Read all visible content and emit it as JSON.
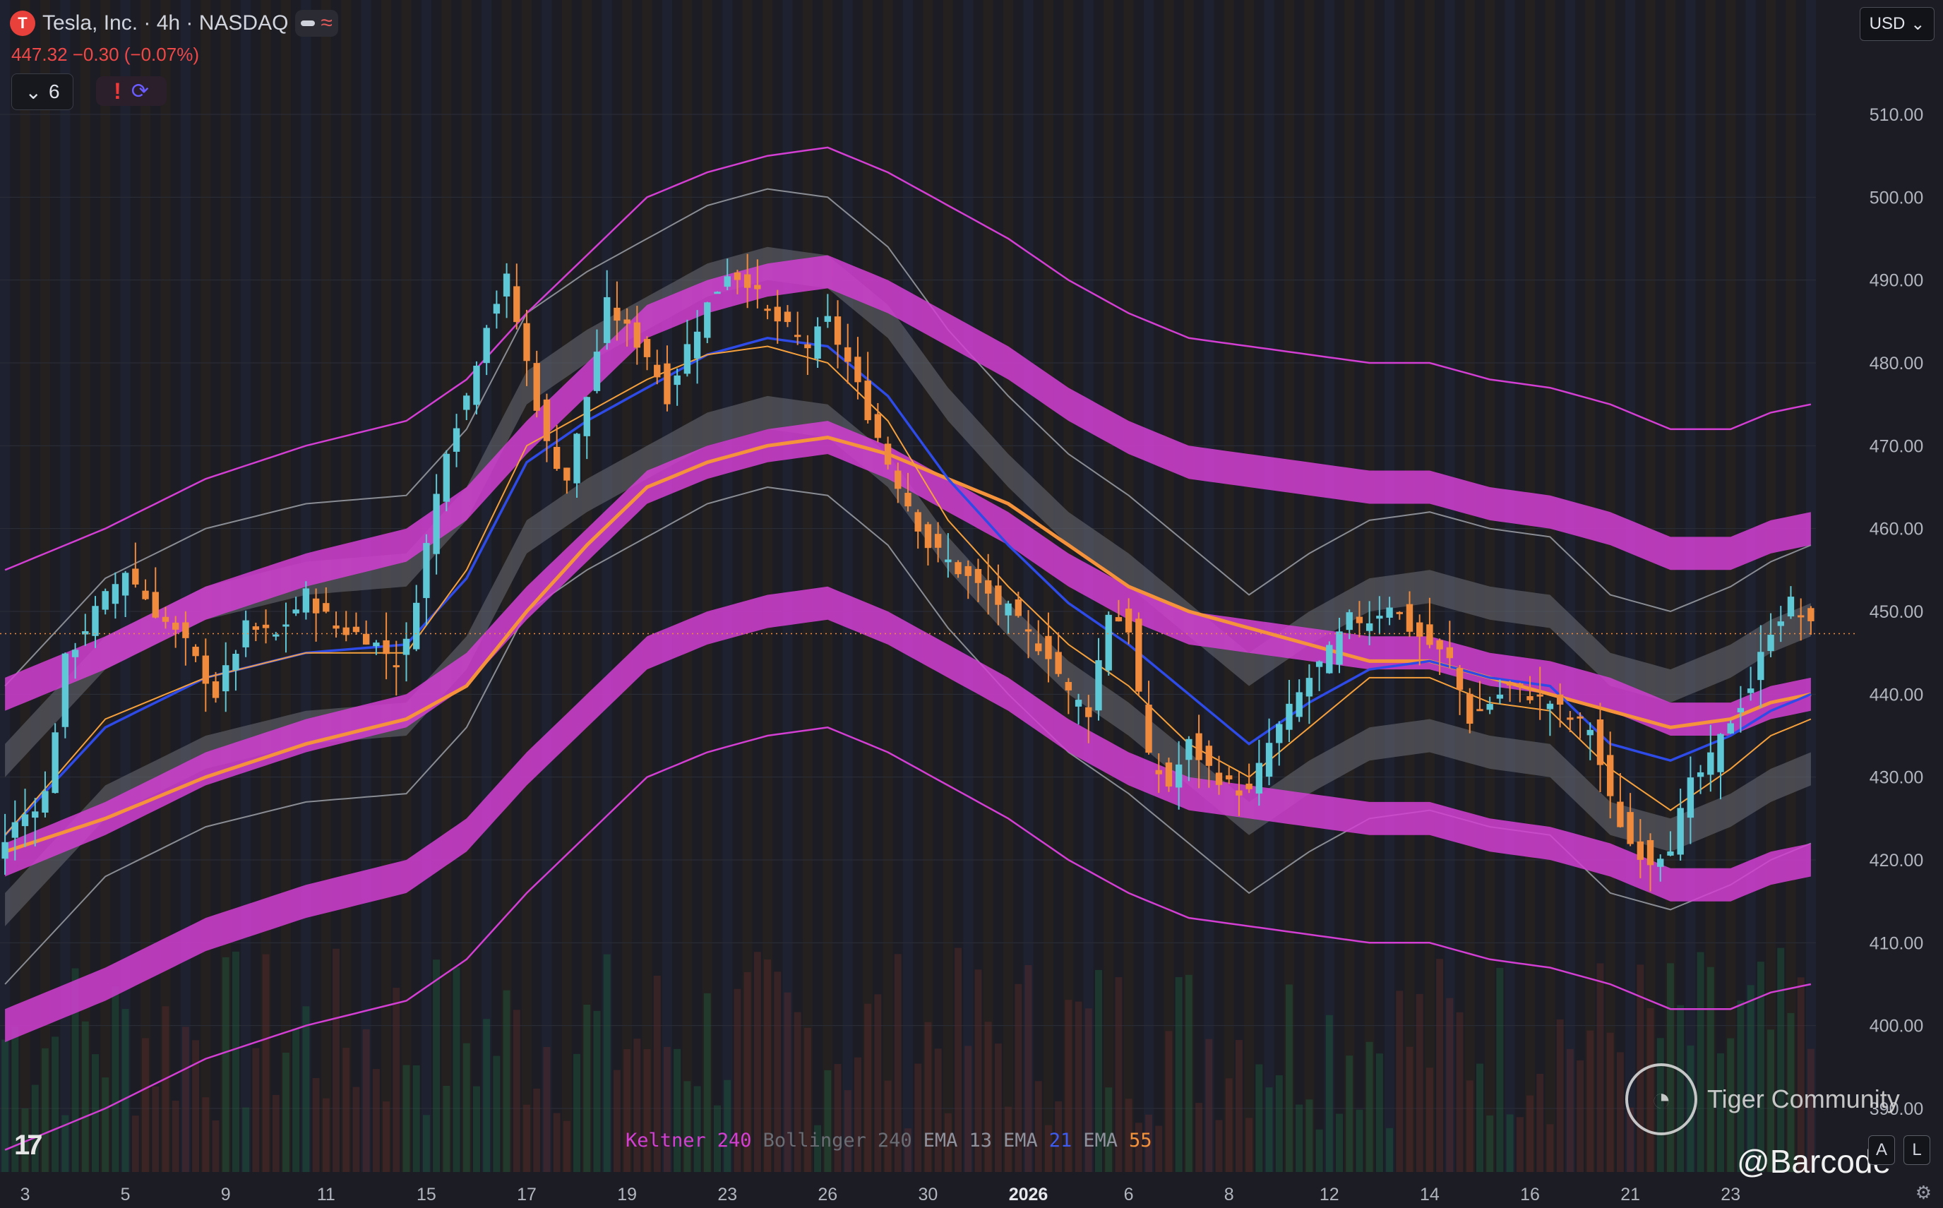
{
  "header": {
    "symbol_title": "Tesla, Inc. · 4h · NASDAQ",
    "logo_letter": "T",
    "price_change": "447.32 −0.30 (−0.07%)",
    "indicators_count": "6",
    "currency": "USD"
  },
  "colors": {
    "keltner": "#d23fd2",
    "bollinger": "#6b6d75",
    "ema13": "#f5a03c",
    "ema21": "#2e4be8",
    "ema55": "#f5923c",
    "up_candle": "#5ec8d6",
    "down_candle": "#f08a3c",
    "price_tag": "#f08a3c"
  },
  "legend": [
    {
      "name": "Keltner",
      "value": "240",
      "color": "#d23fd2"
    },
    {
      "name": "Bollinger",
      "value": "240",
      "color": "#6b6d75"
    },
    {
      "name": "EMA",
      "value": "13",
      "color": "#8f929c",
      "vcolor": "#8f929c"
    },
    {
      "name": "EMA",
      "value": "21",
      "color": "#8f929c",
      "vcolor": "#3e5cf0"
    },
    {
      "name": "EMA",
      "value": "55",
      "color": "#8f929c",
      "vcolor": "#f5923c"
    }
  ],
  "watermark": {
    "brand": "Tiger Community",
    "handle": "@Barcode"
  },
  "scale_buttons": [
    "A",
    "L"
  ],
  "icons": {
    "tradingview_logo": "tv-logo-icon",
    "settings": "gear-icon",
    "dropdown": "chevron-down-icon"
  },
  "chart_data": {
    "type": "candlestick",
    "ylim": [
      385,
      515
    ],
    "y_ticks": [
      "510.00",
      "500.00",
      "490.00",
      "480.00",
      "470.00",
      "460.00",
      "450.00",
      "440.00",
      "430.00",
      "420.00",
      "410.00",
      "400.00",
      "390.00"
    ],
    "x_ticks": [
      {
        "label": "3",
        "bar": 2,
        "bold": false
      },
      {
        "label": "5",
        "bar": 12,
        "bold": false
      },
      {
        "label": "9",
        "bar": 22,
        "bold": false
      },
      {
        "label": "11",
        "bar": 32,
        "bold": false
      },
      {
        "label": "15",
        "bar": 42,
        "bold": false
      },
      {
        "label": "17",
        "bar": 52,
        "bold": false
      },
      {
        "label": "19",
        "bar": 62,
        "bold": false
      },
      {
        "label": "23",
        "bar": 72,
        "bold": false
      },
      {
        "label": "26",
        "bar": 82,
        "bold": false
      },
      {
        "label": "30",
        "bar": 92,
        "bold": false
      },
      {
        "label": "2026",
        "bar": 102,
        "bold": true
      },
      {
        "label": "6",
        "bar": 112,
        "bold": false
      },
      {
        "label": "8",
        "bar": 122,
        "bold": false
      },
      {
        "label": "12",
        "bar": 132,
        "bold": false
      },
      {
        "label": "14",
        "bar": 142,
        "bold": false
      },
      {
        "label": "16",
        "bar": 152,
        "bold": false
      },
      {
        "label": "21",
        "bar": 162,
        "bold": false
      },
      {
        "label": "23",
        "bar": 172,
        "bold": false
      }
    ],
    "last_price": 447.32,
    "last_price_label": "447.32",
    "series": {
      "close": [
        [
          0,
          423
        ],
        [
          4,
          428
        ],
        [
          6,
          444
        ],
        [
          9,
          450
        ],
        [
          12,
          455
        ],
        [
          15,
          450
        ],
        [
          18,
          446
        ],
        [
          21,
          440
        ],
        [
          24,
          448
        ],
        [
          27,
          447
        ],
        [
          30,
          452
        ],
        [
          33,
          448
        ],
        [
          36,
          447
        ],
        [
          39,
          444
        ],
        [
          40,
          446
        ],
        [
          42,
          458
        ],
        [
          44,
          470
        ],
        [
          46,
          476
        ],
        [
          48,
          485
        ],
        [
          50,
          490
        ],
        [
          52,
          480
        ],
        [
          54,
          470
        ],
        [
          56,
          466
        ],
        [
          58,
          476
        ],
        [
          60,
          487
        ],
        [
          62,
          484
        ],
        [
          64,
          481
        ],
        [
          66,
          476
        ],
        [
          68,
          482
        ],
        [
          70,
          487
        ],
        [
          72,
          491
        ],
        [
          74,
          490
        ],
        [
          76,
          486
        ],
        [
          78,
          484
        ],
        [
          80,
          482
        ],
        [
          82,
          485
        ],
        [
          84,
          480
        ],
        [
          86,
          474
        ],
        [
          88,
          468
        ],
        [
          90,
          463
        ],
        [
          92,
          458
        ],
        [
          94,
          456
        ],
        [
          96,
          454
        ],
        [
          98,
          452
        ],
        [
          100,
          450
        ],
        [
          102,
          447
        ],
        [
          104,
          445
        ],
        [
          106,
          440
        ],
        [
          108,
          438
        ],
        [
          110,
          450
        ],
        [
          112,
          448
        ],
        [
          114,
          432
        ],
        [
          116,
          429
        ],
        [
          118,
          434
        ],
        [
          120,
          431
        ],
        [
          122,
          429
        ],
        [
          124,
          428
        ],
        [
          126,
          434
        ],
        [
          128,
          438
        ],
        [
          130,
          442
        ],
        [
          132,
          445
        ],
        [
          134,
          449
        ],
        [
          136,
          449
        ],
        [
          138,
          451
        ],
        [
          140,
          448
        ],
        [
          142,
          446
        ],
        [
          144,
          444
        ],
        [
          146,
          437
        ],
        [
          148,
          439
        ],
        [
          150,
          441
        ],
        [
          152,
          440
        ],
        [
          154,
          439
        ],
        [
          156,
          437
        ],
        [
          158,
          436
        ],
        [
          160,
          427
        ],
        [
          162,
          422
        ],
        [
          164,
          420
        ],
        [
          166,
          422
        ],
        [
          168,
          429
        ],
        [
          170,
          432
        ],
        [
          172,
          437
        ],
        [
          174,
          441
        ],
        [
          176,
          448
        ],
        [
          178,
          451
        ],
        [
          180,
          448
        ]
      ],
      "ema13": [
        [
          0,
          425
        ],
        [
          10,
          439
        ],
        [
          20,
          444
        ],
        [
          30,
          447
        ],
        [
          40,
          447
        ],
        [
          46,
          457
        ],
        [
          52,
          472
        ],
        [
          58,
          476
        ],
        [
          64,
          480
        ],
        [
          70,
          483
        ],
        [
          76,
          484
        ],
        [
          82,
          482
        ],
        [
          88,
          475
        ],
        [
          94,
          463
        ],
        [
          100,
          455
        ],
        [
          106,
          448
        ],
        [
          112,
          443
        ],
        [
          118,
          436
        ],
        [
          124,
          432
        ],
        [
          130,
          438
        ],
        [
          136,
          444
        ],
        [
          142,
          444
        ],
        [
          148,
          441
        ],
        [
          154,
          440
        ],
        [
          160,
          433
        ],
        [
          166,
          428
        ],
        [
          172,
          433
        ],
        [
          176,
          437
        ],
        [
          180,
          439
        ]
      ],
      "ema21": [
        [
          0,
          423
        ],
        [
          10,
          436
        ],
        [
          20,
          442
        ],
        [
          30,
          445
        ],
        [
          40,
          446
        ],
        [
          46,
          454
        ],
        [
          52,
          468
        ],
        [
          58,
          473
        ],
        [
          64,
          477
        ],
        [
          70,
          481
        ],
        [
          76,
          483
        ],
        [
          82,
          482
        ],
        [
          88,
          476
        ],
        [
          94,
          466
        ],
        [
          100,
          458
        ],
        [
          106,
          451
        ],
        [
          112,
          446
        ],
        [
          118,
          440
        ],
        [
          124,
          434
        ],
        [
          130,
          439
        ],
        [
          136,
          443
        ],
        [
          142,
          444
        ],
        [
          148,
          442
        ],
        [
          154,
          441
        ],
        [
          160,
          434
        ],
        [
          166,
          432
        ],
        [
          172,
          435
        ],
        [
          176,
          438
        ],
        [
          180,
          440
        ]
      ],
      "ema55": [
        [
          0,
          421
        ],
        [
          10,
          425
        ],
        [
          20,
          430
        ],
        [
          30,
          434
        ],
        [
          40,
          437
        ],
        [
          46,
          441
        ],
        [
          52,
          450
        ],
        [
          58,
          458
        ],
        [
          64,
          465
        ],
        [
          70,
          468
        ],
        [
          76,
          470
        ],
        [
          82,
          471
        ],
        [
          88,
          469
        ],
        [
          94,
          466
        ],
        [
          100,
          463
        ],
        [
          106,
          458
        ],
        [
          112,
          453
        ],
        [
          118,
          450
        ],
        [
          124,
          448
        ],
        [
          130,
          446
        ],
        [
          136,
          444
        ],
        [
          142,
          444
        ],
        [
          148,
          442
        ],
        [
          154,
          440
        ],
        [
          160,
          438
        ],
        [
          166,
          436
        ],
        [
          172,
          437
        ],
        [
          176,
          439
        ],
        [
          180,
          440
        ]
      ],
      "keltner_mid": [
        [
          0,
          421
        ],
        [
          10,
          426
        ],
        [
          20,
          432
        ],
        [
          30,
          436
        ],
        [
          40,
          439
        ],
        [
          46,
          444
        ],
        [
          52,
          452
        ],
        [
          58,
          459
        ],
        [
          64,
          466
        ],
        [
          70,
          469
        ],
        [
          76,
          471
        ],
        [
          82,
          472
        ],
        [
          88,
          469
        ],
        [
          94,
          465
        ],
        [
          100,
          461
        ],
        [
          106,
          456
        ],
        [
          112,
          452
        ],
        [
          118,
          449
        ],
        [
          124,
          448
        ],
        [
          130,
          447
        ],
        [
          136,
          446
        ],
        [
          142,
          446
        ],
        [
          148,
          444
        ],
        [
          154,
          443
        ],
        [
          160,
          441
        ],
        [
          166,
          438
        ],
        [
          172,
          438
        ],
        [
          176,
          440
        ],
        [
          180,
          441
        ]
      ]
    }
  }
}
